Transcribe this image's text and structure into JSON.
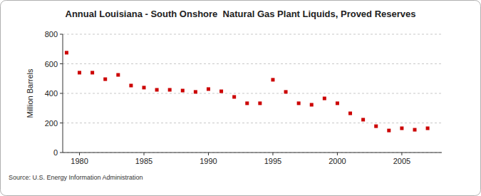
{
  "chart_data": {
    "type": "scatter",
    "title": "Annual Louisiana - South Onshore  Natural Gas Plant Liquids, Proved Reserves",
    "y_label": "Million Barrels",
    "source": "Source: U.S. Energy Information Administration",
    "x": [
      1979,
      1980,
      1981,
      1982,
      1983,
      1984,
      1985,
      1986,
      1987,
      1988,
      1989,
      1990,
      1991,
      1992,
      1993,
      1994,
      1995,
      1996,
      1997,
      1998,
      1999,
      2000,
      2001,
      2002,
      2003,
      2004,
      2005,
      2006,
      2007
    ],
    "values": [
      675,
      540,
      540,
      496,
      525,
      453,
      439,
      424,
      424,
      419,
      410,
      429,
      414,
      376,
      333,
      333,
      492,
      410,
      333,
      323,
      366,
      333,
      265,
      222,
      178,
      149,
      164,
      154,
      164
    ],
    "color": "#cc0000",
    "marker": "square",
    "xlim": [
      1978.7,
      2008.1
    ],
    "xticks": [
      1980,
      1985,
      1990,
      1995,
      2000,
      2005
    ],
    "ylim": [
      0,
      800
    ],
    "yticks": [
      0,
      200,
      400,
      600,
      800
    ],
    "grid": true
  }
}
